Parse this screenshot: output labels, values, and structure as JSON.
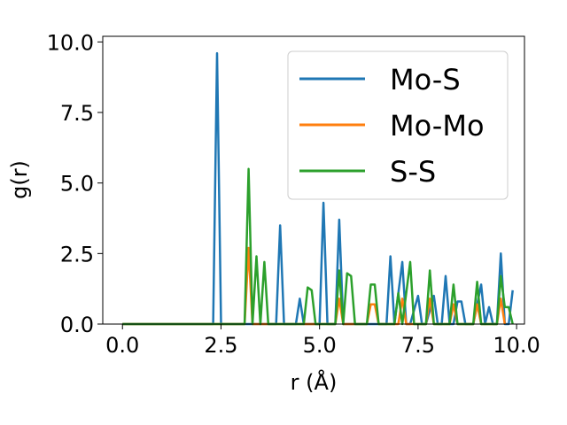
{
  "chart_data": {
    "type": "line",
    "xlabel": "r (Å)",
    "ylabel": "g(r)",
    "xlim": [
      -0.5,
      10.2
    ],
    "ylim": [
      0,
      10.2
    ],
    "xticks": [
      "0.0",
      "2.5",
      "5.0",
      "7.5",
      "10.0"
    ],
    "yticks": [
      "0.0",
      "2.5",
      "5.0",
      "7.5",
      "10.0"
    ],
    "legend_position": "upper-right",
    "grid": false,
    "series": [
      {
        "name": "Mo-S",
        "color": "#1f77b4",
        "points": [
          [
            0.0,
            0
          ],
          [
            2.3,
            0
          ],
          [
            2.4,
            9.6
          ],
          [
            2.5,
            0
          ],
          [
            3.8,
            0
          ],
          [
            3.9,
            0
          ],
          [
            4.0,
            3.5
          ],
          [
            4.1,
            0
          ],
          [
            4.4,
            0
          ],
          [
            4.5,
            0.9
          ],
          [
            4.6,
            0
          ],
          [
            5.0,
            0
          ],
          [
            5.1,
            4.3
          ],
          [
            5.2,
            0
          ],
          [
            5.4,
            0
          ],
          [
            5.5,
            3.7
          ],
          [
            5.6,
            0
          ],
          [
            6.7,
            0
          ],
          [
            6.8,
            2.4
          ],
          [
            6.9,
            0
          ],
          [
            7.1,
            2.2
          ],
          [
            7.2,
            0
          ],
          [
            7.3,
            0
          ],
          [
            7.5,
            1.0
          ],
          [
            7.6,
            0
          ],
          [
            7.7,
            0
          ],
          [
            7.9,
            1.0
          ],
          [
            8.0,
            0
          ],
          [
            8.1,
            0
          ],
          [
            8.2,
            1.7
          ],
          [
            8.3,
            0
          ],
          [
            8.4,
            0
          ],
          [
            8.5,
            0.8
          ],
          [
            8.6,
            0.8
          ],
          [
            8.7,
            0
          ],
          [
            8.9,
            0
          ],
          [
            9.1,
            1.4
          ],
          [
            9.2,
            0
          ],
          [
            9.3,
            0.6
          ],
          [
            9.4,
            0
          ],
          [
            9.5,
            0
          ],
          [
            9.6,
            2.5
          ],
          [
            9.7,
            0
          ],
          [
            9.8,
            0
          ],
          [
            9.9,
            1.2
          ]
        ]
      },
      {
        "name": "Mo-Mo",
        "color": "#ff7f0e",
        "points": [
          [
            0.0,
            0
          ],
          [
            3.1,
            0
          ],
          [
            3.2,
            2.7
          ],
          [
            3.3,
            0
          ],
          [
            5.4,
            0
          ],
          [
            5.5,
            0.9
          ],
          [
            5.6,
            0
          ],
          [
            6.2,
            0
          ],
          [
            6.3,
            0.7
          ],
          [
            6.4,
            0.7
          ],
          [
            6.5,
            0
          ],
          [
            7.0,
            0
          ],
          [
            7.1,
            0.9
          ],
          [
            7.2,
            0
          ],
          [
            7.7,
            0
          ],
          [
            7.8,
            0.9
          ],
          [
            7.9,
            0
          ],
          [
            8.3,
            0
          ],
          [
            8.4,
            0.7
          ],
          [
            8.5,
            0
          ],
          [
            8.9,
            0
          ],
          [
            9.0,
            0.7
          ],
          [
            9.1,
            0
          ],
          [
            9.5,
            0
          ],
          [
            9.6,
            0.9
          ],
          [
            9.7,
            0
          ]
        ]
      },
      {
        "name": "S-S",
        "color": "#2ca02c",
        "points": [
          [
            0.0,
            0
          ],
          [
            3.1,
            0
          ],
          [
            3.2,
            5.5
          ],
          [
            3.3,
            0
          ],
          [
            3.4,
            2.4
          ],
          [
            3.5,
            0
          ],
          [
            3.6,
            2.2
          ],
          [
            3.7,
            0
          ],
          [
            4.6,
            0
          ],
          [
            4.7,
            1.3
          ],
          [
            4.8,
            1.2
          ],
          [
            4.9,
            0
          ],
          [
            5.4,
            0
          ],
          [
            5.5,
            1.9
          ],
          [
            5.6,
            0
          ],
          [
            5.7,
            1.8
          ],
          [
            5.8,
            1.7
          ],
          [
            5.9,
            0
          ],
          [
            6.2,
            0
          ],
          [
            6.3,
            1.4
          ],
          [
            6.4,
            1.4
          ],
          [
            6.5,
            0
          ],
          [
            6.9,
            0
          ],
          [
            7.0,
            1.1
          ],
          [
            7.1,
            0
          ],
          [
            7.3,
            2.2
          ],
          [
            7.4,
            0
          ],
          [
            7.7,
            0
          ],
          [
            7.8,
            1.9
          ],
          [
            7.9,
            0
          ],
          [
            8.3,
            0
          ],
          [
            8.4,
            1.4
          ],
          [
            8.5,
            0
          ],
          [
            8.9,
            0
          ],
          [
            9.0,
            1.5
          ],
          [
            9.1,
            0
          ],
          [
            9.5,
            0
          ],
          [
            9.6,
            1.7
          ],
          [
            9.7,
            0.6
          ],
          [
            9.8,
            0.6
          ],
          [
            9.9,
            0
          ]
        ]
      }
    ]
  }
}
